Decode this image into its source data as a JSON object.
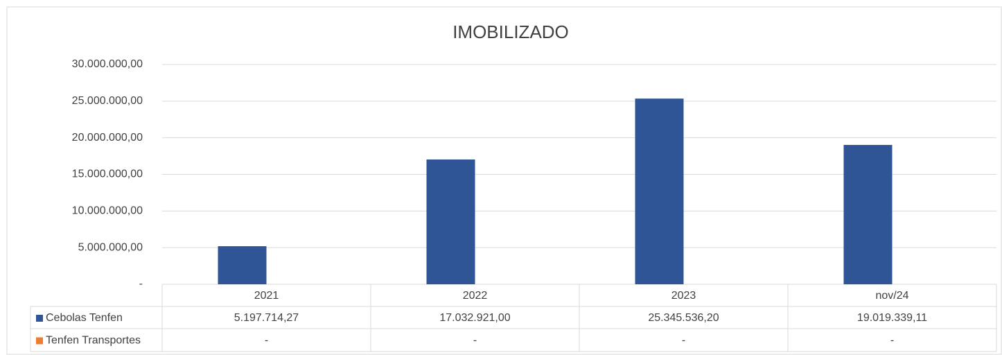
{
  "chart_data": {
    "type": "bar",
    "title": "IMOBILIZADO",
    "categories": [
      "2021",
      "2022",
      "2023",
      "nov/24"
    ],
    "series": [
      {
        "name": "Cebolas Tenfen",
        "color": "#2f5597",
        "values": [
          5197714.27,
          17032921.0,
          25345536.2,
          19019339.11
        ],
        "value_labels": [
          "5.197.714,27",
          "17.032.921,00",
          "25.345.536,20",
          "19.019.339,11"
        ]
      },
      {
        "name": "Tenfen Transportes",
        "color": "#ed7d31",
        "values": [
          0,
          0,
          0,
          0
        ],
        "value_labels": [
          "-",
          "-",
          "-",
          "-"
        ]
      }
    ],
    "ylim": [
      0,
      30000000
    ],
    "yticks": [
      {
        "value": 0,
        "label": "-"
      },
      {
        "value": 5000000,
        "label": "5.000.000,00"
      },
      {
        "value": 10000000,
        "label": "10.000.000,00"
      },
      {
        "value": 15000000,
        "label": "15.000.000,00"
      },
      {
        "value": 20000000,
        "label": "20.000.000,00"
      },
      {
        "value": 25000000,
        "label": "25.000.000,00"
      },
      {
        "value": 30000000,
        "label": "30.000.000,00"
      }
    ],
    "grid": true
  }
}
